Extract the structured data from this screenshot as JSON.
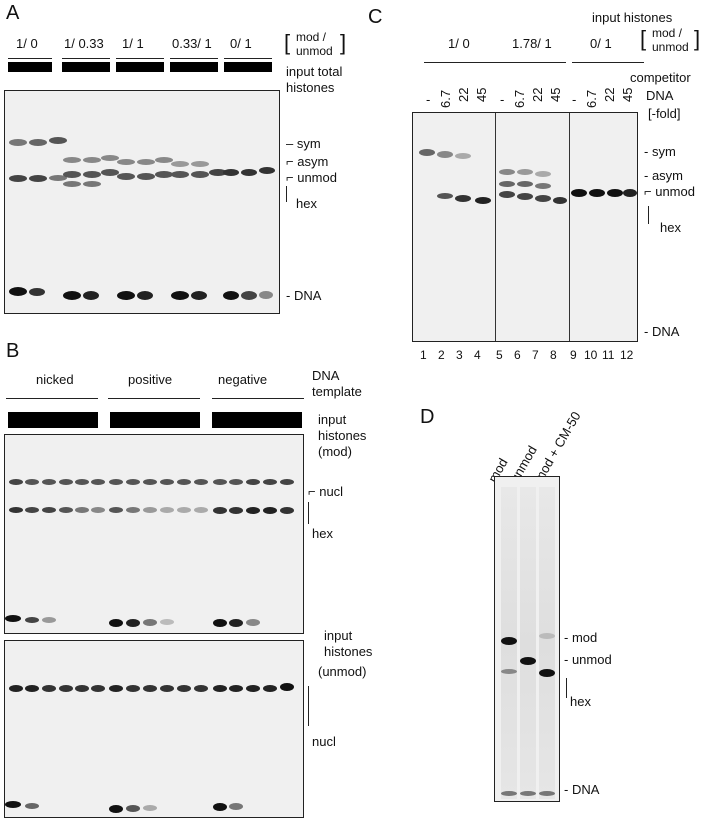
{
  "panelA": {
    "letter": "A",
    "groups": [
      "1/ 0",
      "1/ 0.33",
      "1/ 1",
      "0.33/ 1",
      "0/ 1"
    ],
    "ratio_mod": "mod /",
    "ratio_unmod": "unmod",
    "input_line1": "input total",
    "input_line2": "histones",
    "labels": [
      "sym",
      "asym",
      "unmod",
      "hex",
      "- DNA"
    ]
  },
  "panelB": {
    "letter": "B",
    "templates": [
      "nicked",
      "positive",
      "negative"
    ],
    "dna_line1": "DNA",
    "dna_line2": "template",
    "mod_line1": "input",
    "mod_line2": "histones",
    "mod_line3": "(mod)",
    "unmod_line1": "input",
    "unmod_line2": "histones",
    "unmod_line3": "(unmod)",
    "labels_top": [
      "nucl",
      "hex"
    ],
    "labels_bottom": [
      "nucl"
    ]
  },
  "panelC": {
    "letter": "C",
    "input_histones": "input histones",
    "groups": [
      "1/ 0",
      "1.78/ 1",
      "0/ 1"
    ],
    "ratio_mod": "mod /",
    "ratio_unmod": "unmod",
    "competitor": "competitor",
    "dna": "DNA",
    "fold": "[-fold]",
    "lane_conc": [
      "-",
      "6.7",
      "22",
      "45",
      "-",
      "6.7",
      "22",
      "45",
      "-",
      "6.7",
      "22",
      "45"
    ],
    "lane_numbers": [
      "1",
      "2",
      "3",
      "4",
      "5",
      "6",
      "7",
      "8",
      "9",
      "10",
      "11",
      "12"
    ],
    "labels": [
      "- sym",
      "asym",
      "unmod",
      "hex",
      "- DNA"
    ]
  },
  "panelD": {
    "letter": "D",
    "lanes": [
      "mod",
      "unmod",
      "mod + CM-50"
    ],
    "labels": [
      "- mod",
      "- unmod",
      "hex",
      "- DNA"
    ]
  },
  "colors": {
    "gel_bg": "#f0f0f0",
    "band": "#1a1a1a",
    "text": "#111111"
  }
}
